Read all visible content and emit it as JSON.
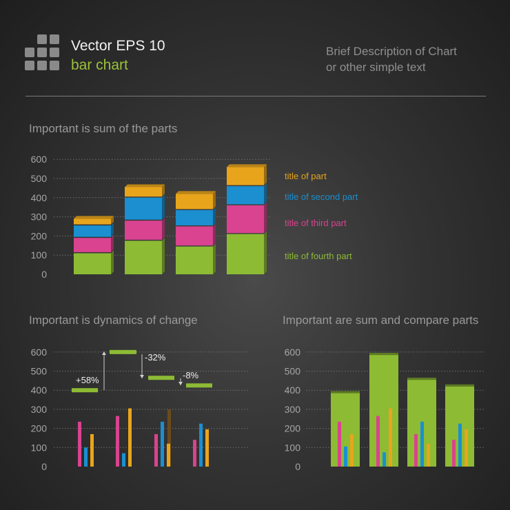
{
  "header": {
    "title": "Vector EPS 10",
    "subtitle": "bar chart",
    "description_line1": "Brief Description of Chart",
    "description_line2": "or other simple text"
  },
  "colors": {
    "green": "#8dbb34",
    "blue": "#1b8fd0",
    "pink": "#d9438f",
    "orange": "#e8a51c",
    "grid": "#6f6f6f"
  },
  "chart_data": [
    {
      "type": "bar",
      "stacked": true,
      "title": "Important is sum of the parts",
      "yticks": [
        "0",
        "100",
        "200",
        "300",
        "400",
        "500",
        "600"
      ],
      "ylim": [
        0,
        600
      ],
      "categories": [
        "",
        "",
        "",
        ""
      ],
      "series": [
        {
          "name": "title of fourth part",
          "color": "green",
          "values": [
            110,
            175,
            145,
            210
          ]
        },
        {
          "name": "title of third part",
          "color": "pink",
          "values": [
            80,
            105,
            105,
            150
          ]
        },
        {
          "name": "title of second part",
          "color": "blue",
          "values": [
            65,
            120,
            85,
            100
          ]
        },
        {
          "name": "title of part",
          "color": "orange",
          "values": [
            35,
            55,
            85,
            100
          ]
        }
      ],
      "legend_position": "right",
      "grid": true
    },
    {
      "type": "bar",
      "title": "Important is dynamics of change",
      "yticks": [
        "0",
        "100",
        "200",
        "300",
        "400",
        "500",
        "600"
      ],
      "ylim": [
        0,
        600
      ],
      "groups": [
        {
          "pink": 235,
          "blue": 100,
          "orange": 170,
          "ghost": 0,
          "level": 400
        },
        {
          "pink": 265,
          "blue": 70,
          "orange": 305,
          "ghost": 0,
          "level": 600
        },
        {
          "pink": 170,
          "blue": 235,
          "orange": 120,
          "ghost": 300,
          "level": 465
        },
        {
          "pink": 140,
          "blue": 225,
          "orange": 195,
          "ghost": 0,
          "level": 425
        }
      ],
      "changes": [
        "+58%",
        "-32%",
        "-8%"
      ],
      "grid": true
    },
    {
      "type": "bar",
      "title": "Important are sum and compare parts",
      "yticks": [
        "0",
        "100",
        "200",
        "300",
        "400",
        "500",
        "600"
      ],
      "ylim": [
        0,
        600
      ],
      "groups": [
        {
          "total": 395,
          "pink": 235,
          "blue": 105,
          "orange": 170
        },
        {
          "total": 595,
          "pink": 265,
          "blue": 75,
          "orange": 305
        },
        {
          "total": 465,
          "pink": 170,
          "blue": 235,
          "orange": 120
        },
        {
          "total": 430,
          "pink": 140,
          "blue": 225,
          "orange": 195
        }
      ],
      "grid": true
    }
  ]
}
